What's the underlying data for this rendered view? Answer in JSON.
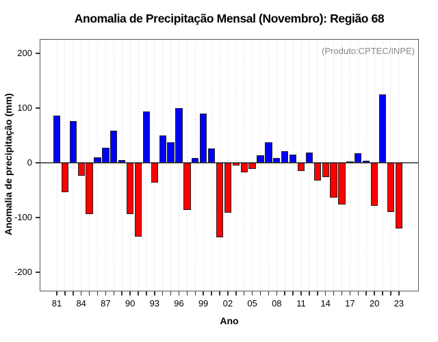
{
  "chart_data": {
    "type": "bar",
    "title": "Anomalia de Precipitação Mensal (Novembro): Região 68",
    "annotation": "(Produto:CPTEC/INPE)",
    "xlabel": "Ano",
    "ylabel": "Anomalia de precipitação (mm)",
    "years": [
      1981,
      1982,
      1983,
      1984,
      1985,
      1986,
      1987,
      1988,
      1989,
      1990,
      1991,
      1992,
      1993,
      1994,
      1995,
      1996,
      1997,
      1998,
      1999,
      2000,
      2001,
      2002,
      2003,
      2004,
      2005,
      2006,
      2007,
      2008,
      2009,
      2010,
      2011,
      2012,
      2013,
      2014,
      2015,
      2016,
      2017,
      2018,
      2019,
      2020,
      2021,
      2022,
      2023
    ],
    "values": [
      86,
      -54,
      76,
      -24,
      -94,
      10,
      28,
      59,
      5,
      -94,
      -135,
      94,
      -37,
      50,
      38,
      100,
      -86,
      9,
      90,
      26,
      -136,
      -91,
      -5,
      -18,
      -11,
      14,
      38,
      9,
      21,
      15,
      -15,
      19,
      -33,
      -27,
      -64,
      -77,
      3,
      18,
      4,
      -79,
      125,
      -90,
      -120
    ],
    "unit": "mm",
    "positive_color": "#0000ff",
    "negative_color": "#ff0000",
    "bar_border_color": "#222222",
    "annotation_color": "#888888",
    "yticks": [
      200,
      100,
      0,
      -100,
      -200
    ],
    "ytick_labels": [
      "200",
      "100",
      "0",
      "-100",
      "-200"
    ],
    "xtick_labels": [
      "81",
      "84",
      "87",
      "90",
      "93",
      "96",
      "99",
      "02",
      "05",
      "08",
      "11",
      "14",
      "17",
      "20",
      "23"
    ],
    "xtick_label_step": 3,
    "ylim": [
      -234,
      225
    ],
    "grid": "vertical-dotted-per-year",
    "legend": "none"
  }
}
